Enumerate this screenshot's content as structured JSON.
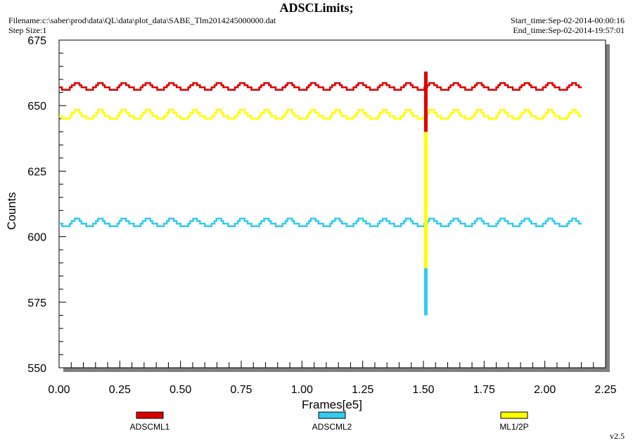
{
  "header": {
    "title": "ADSCLimits;",
    "filename": "Filename:c:\\saber\\prod\\data\\QL\\data\\plot_data\\SABE_Tlm2014245000000.dat",
    "step_size": "Step Size:1",
    "start_time": "Start_time:Sep-02-2014-00:00:16",
    "end_time": "End_time:Sep-02-2014-19:57:01"
  },
  "footer": {
    "version": "v2.5"
  },
  "colors": {
    "ADSCML1": "#dd0000",
    "ADSCML2": "#33ccee",
    "ML1/2P": "#ffff00",
    "shadow": "#808080"
  },
  "chart_data": {
    "type": "line",
    "title": "ADSCLimits;",
    "xlabel": "Frames[e5]",
    "ylabel": "Counts",
    "xlim": [
      0,
      2.25
    ],
    "ylim": [
      550,
      675
    ],
    "x_ticks": [
      "0.00",
      "0.25",
      "0.50",
      "0.75",
      "1.00",
      "1.25",
      "1.50",
      "1.75",
      "2.00",
      "2.25"
    ],
    "y_ticks": [
      "550",
      "575",
      "600",
      "625",
      "650",
      "675"
    ],
    "grid": false,
    "legend_position": "bottom",
    "series": [
      {
        "name": "ADSCML1",
        "color": "#dd0000",
        "baseline": [
          656,
          657
        ],
        "peak": 658.6,
        "x_range": [
          0,
          2.15
        ],
        "oscillation_period": 0.0975,
        "spike": {
          "x": 1.51,
          "min": 640,
          "max": 663
        }
      },
      {
        "name": "ADSCML2",
        "color": "#33ccee",
        "baseline": [
          604,
          605
        ],
        "peak": 606.9,
        "x_range": [
          0,
          2.15
        ],
        "oscillation_period": 0.0975,
        "spike": {
          "x": 1.51,
          "min": 570,
          "max": 588
        }
      },
      {
        "name": "ML1/2P",
        "color": "#ffff00",
        "baseline": [
          645,
          646
        ],
        "peak": 648.4,
        "x_range": [
          0,
          2.15
        ],
        "oscillation_period": 0.0975,
        "spike": {
          "x": 1.51,
          "min": 588,
          "max": 646
        }
      }
    ]
  }
}
